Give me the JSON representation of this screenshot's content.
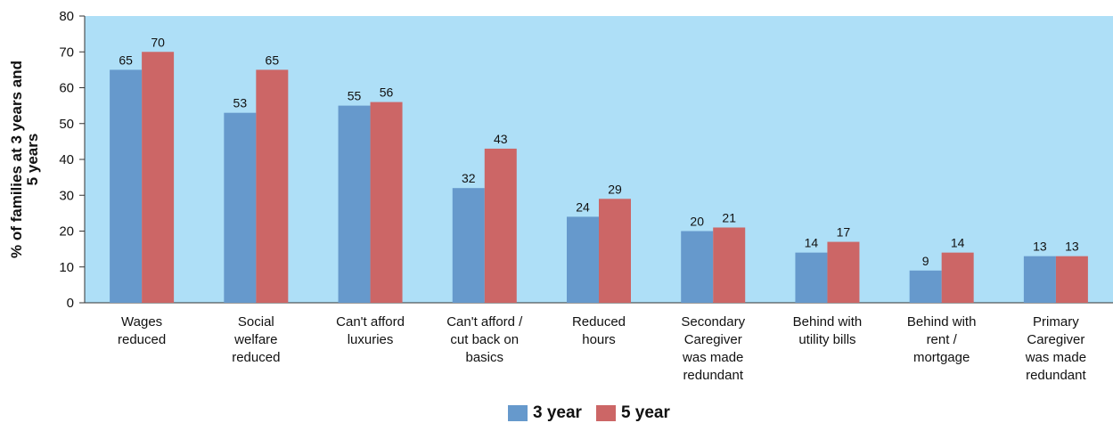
{
  "chart_data": {
    "type": "bar",
    "categories": [
      [
        "Wages",
        "reduced"
      ],
      [
        "Social",
        "welfare",
        "reduced"
      ],
      [
        "Can't afford",
        "luxuries"
      ],
      [
        "Can't afford /",
        "cut back on",
        "basics"
      ],
      [
        "Reduced",
        "hours"
      ],
      [
        "Secondary",
        "Caregiver",
        "was made",
        "redundant"
      ],
      [
        "Behind with",
        "utility bills"
      ],
      [
        "Behind with",
        "rent /",
        "mortgage"
      ],
      [
        "Primary",
        "Caregiver",
        "was made",
        "redundant"
      ]
    ],
    "series": [
      {
        "name": "3 year",
        "color": "#6699cc",
        "values": [
          65,
          53,
          55,
          32,
          24,
          20,
          14,
          9,
          13
        ],
        "labels": [
          "65",
          "53",
          "55",
          "32",
          "24",
          "20",
          "14",
          "9",
          "13"
        ]
      },
      {
        "name": "5 year",
        "color": "#cc6666",
        "values": [
          70,
          65,
          56,
          43,
          29,
          21,
          17,
          14,
          13
        ],
        "labels": [
          "70",
          "65",
          "56",
          "43",
          "29",
          "21",
          "17",
          "14",
          "13"
        ]
      }
    ],
    "ylabel_lines": [
      "% of families at 3 years and",
      "5 years"
    ],
    "ylim": [
      0,
      80
    ],
    "yticks": [
      "0",
      "10",
      "20",
      "30",
      "40",
      "50",
      "60",
      "70",
      "80"
    ],
    "plot_background": "#aedff7",
    "grid": false,
    "legend_position": "bottom-center"
  }
}
